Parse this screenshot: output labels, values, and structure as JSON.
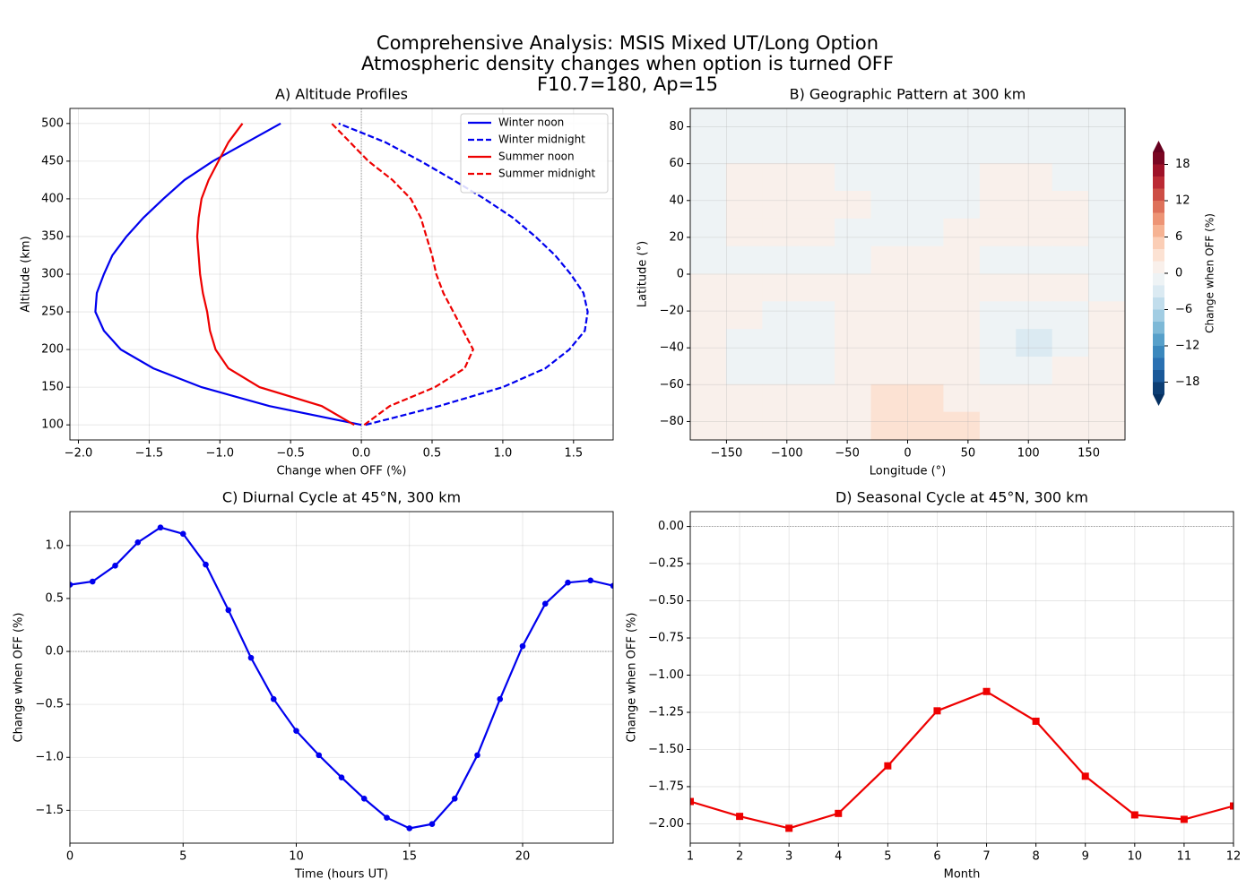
{
  "suptitle": [
    "Comprehensive Analysis: MSIS Mixed UT/Long Option",
    "Atmospheric density changes when option is turned OFF",
    "F10.7=180, Ap=15"
  ],
  "chart_data": [
    {
      "type": "line",
      "title": "A) Altitude Profiles",
      "xlabel": "Change when OFF (%)",
      "ylabel": "Altitude (km)",
      "y": [
        100,
        125,
        150,
        175,
        200,
        225,
        250,
        275,
        300,
        325,
        350,
        375,
        400,
        425,
        450,
        475,
        500
      ],
      "series": [
        {
          "name": "Winter noon",
          "color": "#0000ee",
          "dashed": false,
          "values": [
            0,
            -0.65,
            -1.13,
            -1.47,
            -1.7,
            -1.82,
            -1.88,
            -1.87,
            -1.82,
            -1.76,
            -1.66,
            -1.54,
            -1.4,
            -1.25,
            -1.05,
            -0.81,
            -0.57
          ]
        },
        {
          "name": "Winter midnight",
          "color": "#0000ee",
          "dashed": true,
          "values": [
            0.03,
            0.55,
            1.0,
            1.3,
            1.47,
            1.58,
            1.6,
            1.57,
            1.48,
            1.37,
            1.23,
            1.07,
            0.87,
            0.65,
            0.42,
            0.17,
            -0.16
          ]
        },
        {
          "name": "Summer noon",
          "color": "#ee0000",
          "dashed": false,
          "values": [
            -0.05,
            -0.28,
            -0.72,
            -0.94,
            -1.03,
            -1.07,
            -1.09,
            -1.12,
            -1.14,
            -1.15,
            -1.16,
            -1.15,
            -1.13,
            -1.08,
            -1.01,
            -0.94,
            -0.84
          ]
        },
        {
          "name": "Summer midnight",
          "color": "#ee0000",
          "dashed": true,
          "values": [
            0.02,
            0.2,
            0.52,
            0.73,
            0.79,
            0.72,
            0.65,
            0.58,
            0.53,
            0.5,
            0.46,
            0.42,
            0.35,
            0.22,
            0.05,
            -0.08,
            -0.21
          ]
        }
      ],
      "xlim": [
        -2.06,
        1.78
      ],
      "xticks": [
        {
          "value": -2,
          "label": "−2.0"
        },
        {
          "value": -1.5,
          "label": "−1.5"
        },
        {
          "value": -1,
          "label": "−1.0"
        },
        {
          "value": -0.5,
          "label": "−0.5"
        },
        {
          "value": 0,
          "label": "0.0"
        },
        0.5,
        {
          "value": 1,
          "label": "1.0"
        },
        1.5
      ],
      "ylim": [
        80,
        520
      ],
      "yticks": [
        100,
        150,
        200,
        250,
        300,
        350,
        400,
        450,
        500
      ],
      "grid": true,
      "legend": "upper right",
      "vline": 0
    },
    {
      "type": "contour",
      "title": "B) Geographic Pattern at 300 km",
      "xlabel": "Longitude (°)",
      "ylabel": "Latitude (°)",
      "lon": [
        -165,
        -135,
        -105,
        -75,
        -45,
        -15,
        15,
        45,
        75,
        105,
        135,
        165
      ],
      "lat": [
        82.5,
        67.5,
        52.5,
        37.5,
        22.5,
        7.5,
        -7.5,
        -22.5,
        -37.5,
        -52.5,
        -67.5,
        -82.5
      ],
      "values": [
        [
          -0.5,
          -0.5,
          -0.5,
          -0.5,
          -0.5,
          -0.5,
          -0.5,
          -0.5,
          -0.5,
          -0.5,
          -0.5,
          -0.5
        ],
        [
          -0.5,
          -0.5,
          -0.5,
          -0.5,
          -0.5,
          -0.5,
          -0.5,
          -0.5,
          -0.5,
          -0.5,
          -0.5,
          -0.5
        ],
        [
          -0.5,
          0.5,
          0.5,
          0.5,
          -0.5,
          -0.5,
          -0.5,
          -0.5,
          0.5,
          0.5,
          -0.5,
          -0.5
        ],
        [
          -0.5,
          0.5,
          0.5,
          0.5,
          0.5,
          -0.5,
          -0.5,
          -0.5,
          0.5,
          0.5,
          0.5,
          -0.5
        ],
        [
          -0.5,
          0.5,
          0.5,
          0.5,
          -0.5,
          -0.5,
          -0.5,
          0.5,
          0.5,
          0.5,
          0.5,
          -0.5
        ],
        [
          -0.5,
          -0.5,
          -0.5,
          -0.5,
          -0.5,
          0.5,
          0.5,
          0.5,
          -0.5,
          -0.5,
          -0.5,
          -0.5
        ],
        [
          0.5,
          0.5,
          0.5,
          0.5,
          0.5,
          0.5,
          0.5,
          0.5,
          0.5,
          0.5,
          0.5,
          -0.5
        ],
        [
          0.5,
          0.5,
          -0.5,
          -0.5,
          0.5,
          0.5,
          0.5,
          0.5,
          -0.5,
          -0.5,
          -0.5,
          0.5
        ],
        [
          0.5,
          -0.5,
          -0.5,
          -0.5,
          0.5,
          0.5,
          0.5,
          0.5,
          -0.5,
          -2.5,
          -0.5,
          0.5
        ],
        [
          0.5,
          -0.5,
          -0.5,
          -0.5,
          0.5,
          0.5,
          0.5,
          0.5,
          -0.5,
          -0.5,
          0.5,
          0.5
        ],
        [
          0.5,
          0.5,
          0.5,
          0.5,
          0.5,
          2.5,
          2.5,
          0.5,
          0.5,
          0.5,
          0.5,
          0.5
        ],
        [
          0.5,
          0.5,
          0.5,
          0.5,
          0.5,
          2.5,
          2.5,
          2.5,
          0.5,
          0.5,
          0.5,
          0.5
        ]
      ],
      "levels": [
        -20,
        -18,
        -16,
        -14,
        -12,
        -10,
        -8,
        -6,
        -4,
        -2,
        0,
        2,
        4,
        6,
        8,
        10,
        12,
        14,
        16,
        18,
        20
      ],
      "colormap": [
        "#053061",
        "#2166ac",
        "#4393c3",
        "#92c5de",
        "#d1e5f0",
        "#f7f7f7",
        "#fddbc7",
        "#f4a582",
        "#d6604d",
        "#b2182b",
        "#67001f"
      ],
      "extend": "both",
      "colorbar_label": "Change when OFF (%)",
      "colorbar_ticks": [
        {
          "value": -18,
          "label": "−18"
        },
        {
          "value": -12,
          "label": "−12"
        },
        {
          "value": -6,
          "label": "−6"
        },
        0,
        6,
        12,
        18
      ],
      "xlim": [
        -180,
        180
      ],
      "xticks": [
        {
          "value": -150,
          "label": "−150"
        },
        {
          "value": -100,
          "label": "−100"
        },
        {
          "value": -50,
          "label": "−50"
        },
        0,
        50,
        100,
        150
      ],
      "ylim": [
        -90,
        90
      ],
      "yticks": [
        {
          "value": -80,
          "label": "−80"
        },
        {
          "value": -60,
          "label": "−60"
        },
        {
          "value": -40,
          "label": "−40"
        },
        {
          "value": -20,
          "label": "−20"
        },
        0,
        20,
        40,
        60,
        80
      ],
      "grid": true
    },
    {
      "type": "line",
      "title": "C) Diurnal Cycle at 45°N, 300 km",
      "xlabel": "Time (hours UT)",
      "ylabel": "Change when OFF (%)",
      "x": [
        0,
        1,
        2,
        3,
        4,
        5,
        6,
        7,
        8,
        9,
        10,
        11,
        12,
        13,
        14,
        15,
        16,
        17,
        18,
        19,
        20,
        21,
        22,
        23,
        24
      ],
      "series": [
        {
          "color": "#0000ee",
          "marker": "circle",
          "values": [
            0.63,
            0.66,
            0.81,
            1.03,
            1.17,
            1.11,
            0.82,
            0.39,
            -0.06,
            -0.45,
            -0.75,
            -0.98,
            -1.19,
            -1.39,
            -1.57,
            -1.67,
            -1.63,
            -1.39,
            -0.98,
            -0.45,
            0.05,
            0.45,
            0.65,
            0.67,
            0.62
          ]
        }
      ],
      "xlim": [
        0,
        24
      ],
      "xticks": [
        0,
        5,
        10,
        15,
        20
      ],
      "ylim": [
        -1.81,
        1.32
      ],
      "yticks": [
        {
          "value": -1.5,
          "label": "−1.5"
        },
        {
          "value": -1,
          "label": "−1.0"
        },
        {
          "value": -0.5,
          "label": "−0.5"
        },
        {
          "value": 0,
          "label": "0.0"
        },
        0.5,
        {
          "value": 1,
          "label": "1.0"
        }
      ],
      "grid": true,
      "hline": 0
    },
    {
      "type": "line",
      "title": "D) Seasonal Cycle at 45°N, 300 km",
      "xlabel": "Month",
      "ylabel": "Change when OFF (%)",
      "x": [
        1,
        2,
        3,
        4,
        5,
        6,
        7,
        8,
        9,
        10,
        11,
        12
      ],
      "series": [
        {
          "color": "#ee0000",
          "marker": "square",
          "values": [
            -1.85,
            -1.95,
            -2.03,
            -1.93,
            -1.61,
            -1.24,
            -1.11,
            -1.31,
            -1.68,
            -1.94,
            -1.97,
            -1.88
          ]
        }
      ],
      "xlim": [
        1,
        12
      ],
      "xticks": [
        1,
        2,
        3,
        4,
        5,
        6,
        7,
        8,
        9,
        10,
        11,
        12
      ],
      "ylim": [
        -2.13,
        0.1
      ],
      "yticks": [
        {
          "value": 0,
          "label": "0.00"
        },
        {
          "value": -0.25,
          "label": "−0.25"
        },
        {
          "value": -0.5,
          "label": "−0.50"
        },
        {
          "value": -0.75,
          "label": "−0.75"
        },
        {
          "value": -1,
          "label": "−1.00"
        },
        {
          "value": -1.25,
          "label": "−1.25"
        },
        {
          "value": -1.5,
          "label": "−1.50"
        },
        {
          "value": -1.75,
          "label": "−1.75"
        },
        {
          "value": -2,
          "label": "−2.00"
        }
      ],
      "grid": true,
      "hline": 0
    }
  ]
}
